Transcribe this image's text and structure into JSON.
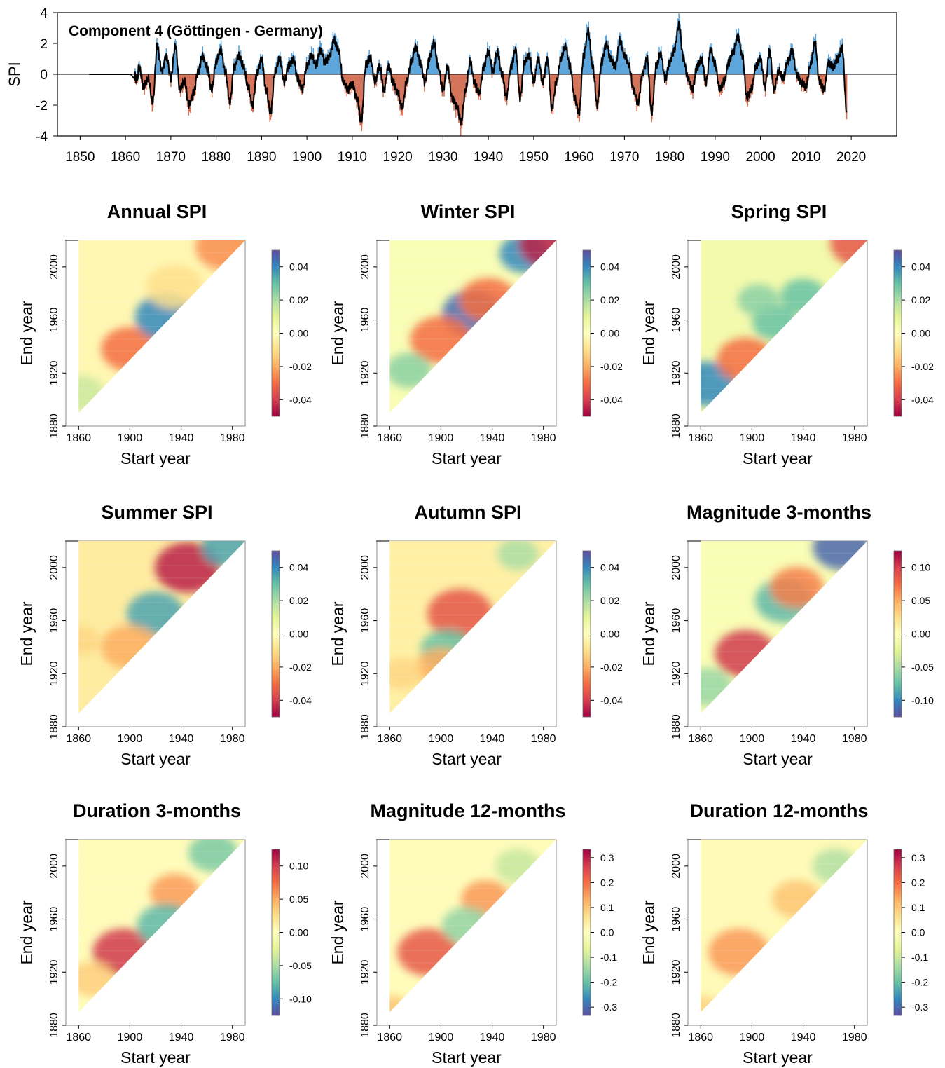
{
  "figure": {
    "timeseries": {
      "title": "Component 4 (Göttingen - Germany)",
      "ylabel": "SPI",
      "yticks": [
        "4",
        "2",
        "0",
        "-2",
        "-4"
      ],
      "xticks": [
        "1850",
        "1860",
        "1870",
        "1880",
        "1890",
        "1900",
        "1910",
        "1920",
        "1930",
        "1940",
        "1950",
        "1960",
        "1970",
        "1980",
        "1990",
        "2000",
        "2010",
        "2020"
      ]
    },
    "panel_axis": {
      "xlabel": "Start year",
      "ylabel": "End year",
      "xticks": [
        "1860",
        "1900",
        "1940",
        "1980"
      ],
      "yticks": [
        "1880",
        "1920",
        "1960",
        "2000"
      ]
    },
    "panels": [
      {
        "title": "Annual SPI",
        "cbar_ticks": [
          "0.04",
          "0.02",
          "0.00",
          "-0.02",
          "-0.04"
        ],
        "cbar_reversed": false
      },
      {
        "title": "Winter SPI",
        "cbar_ticks": [
          "0.04",
          "0.02",
          "0.00",
          "-0.02",
          "-0.04"
        ],
        "cbar_reversed": false
      },
      {
        "title": "Spring SPI",
        "cbar_ticks": [
          "0.04",
          "0.02",
          "0.00",
          "-0.02",
          "-0.04"
        ],
        "cbar_reversed": false
      },
      {
        "title": "Summer SPI",
        "cbar_ticks": [
          "0.04",
          "0.02",
          "0.00",
          "-0.02",
          "-0.04"
        ],
        "cbar_reversed": false
      },
      {
        "title": "Autumn SPI",
        "cbar_ticks": [
          "0.04",
          "0.02",
          "0.00",
          "-0.02",
          "-0.04"
        ],
        "cbar_reversed": false
      },
      {
        "title": "Magnitude 3-months",
        "cbar_ticks": [
          "0.10",
          "0.05",
          "0.00",
          "-0.05",
          "-0.10"
        ],
        "cbar_reversed": true
      },
      {
        "title": "Duration 3-months",
        "cbar_ticks": [
          "0.10",
          "0.05",
          "0.00",
          "-0.05",
          "-0.10"
        ],
        "cbar_reversed": true
      },
      {
        "title": "Magnitude 12-months",
        "cbar_ticks": [
          "0.3",
          "0.2",
          "0.1",
          "0.0",
          "-0.1",
          "-0.2",
          "-0.3"
        ],
        "cbar_reversed": true
      },
      {
        "title": "Duration 12-months",
        "cbar_ticks": [
          "0.3",
          "0.2",
          "0.1",
          "0.0",
          "-0.1",
          "-0.2",
          "-0.3"
        ],
        "cbar_reversed": true
      }
    ],
    "colors": {
      "positive_fill": "#5DA5DA",
      "negative_fill": "#D4745A",
      "spi_line": "#000000"
    }
  },
  "chart_data": [
    {
      "type": "area",
      "title": "Component 4 (Göttingen - Germany)",
      "ylabel": "SPI",
      "xlim": [
        1845,
        2030
      ],
      "ylim": [
        -4,
        4
      ],
      "anchors": [
        [
          1852,
          0
        ],
        [
          1862,
          0
        ],
        [
          1862.5,
          -0.4
        ],
        [
          1863,
          0.5
        ],
        [
          1864,
          -0.8
        ],
        [
          1865,
          -0.3
        ],
        [
          1866,
          -1.8
        ],
        [
          1867,
          1.8
        ],
        [
          1868,
          0.2
        ],
        [
          1869,
          1.2
        ],
        [
          1870,
          -0.2
        ],
        [
          1871,
          1.9
        ],
        [
          1872,
          -1.0
        ],
        [
          1873,
          -0.5
        ],
        [
          1874,
          -2.0
        ],
        [
          1875,
          -1.2
        ],
        [
          1876,
          0.2
        ],
        [
          1877,
          1.2
        ],
        [
          1878,
          0.4
        ],
        [
          1879,
          -1.0
        ],
        [
          1880,
          0.8
        ],
        [
          1881,
          1.6
        ],
        [
          1882,
          0.2
        ],
        [
          1883,
          -1.8
        ],
        [
          1884,
          0.5
        ],
        [
          1885,
          1.2
        ],
        [
          1886,
          0.5
        ],
        [
          1887,
          -0.8
        ],
        [
          1888,
          -2.0
        ],
        [
          1889,
          0.1
        ],
        [
          1890,
          1.0
        ],
        [
          1891,
          -1.0
        ],
        [
          1892,
          -2.5
        ],
        [
          1893,
          0.2
        ],
        [
          1894,
          1.0
        ],
        [
          1895,
          -0.5
        ],
        [
          1896,
          0.6
        ],
        [
          1897,
          1.0
        ],
        [
          1898,
          -0.3
        ],
        [
          1899,
          -1.0
        ],
        [
          1900,
          0.5
        ],
        [
          1901,
          1.2
        ],
        [
          1902,
          0.6
        ],
        [
          1903,
          1.6
        ],
        [
          1904,
          0.8
        ],
        [
          1905,
          1.2
        ],
        [
          1906,
          2.2
        ],
        [
          1907,
          1.5
        ],
        [
          1908,
          -0.5
        ],
        [
          1909,
          -1.0
        ],
        [
          1910,
          -0.6
        ],
        [
          1911,
          -1.5
        ],
        [
          1912,
          -3.0
        ],
        [
          1913,
          0.6
        ],
        [
          1914,
          1.0
        ],
        [
          1915,
          -0.5
        ],
        [
          1916,
          0.5
        ],
        [
          1917,
          -1.0
        ],
        [
          1918,
          0.6
        ],
        [
          1919,
          -0.5
        ],
        [
          1920,
          -1.2
        ],
        [
          1921,
          -2.2
        ],
        [
          1922,
          -0.5
        ],
        [
          1923,
          0.8
        ],
        [
          1924,
          1.8
        ],
        [
          1925,
          0.8
        ],
        [
          1926,
          -0.5
        ],
        [
          1927,
          1.0
        ],
        [
          1928,
          2.0
        ],
        [
          1929,
          0.4
        ],
        [
          1930,
          -1.0
        ],
        [
          1931,
          0.5
        ],
        [
          1932,
          -1.5
        ],
        [
          1933,
          -2.0
        ],
        [
          1934,
          -3.1
        ],
        [
          1935,
          -1.0
        ],
        [
          1936,
          0.8
        ],
        [
          1937,
          -0.6
        ],
        [
          1938,
          -1.2
        ],
        [
          1939,
          0.5
        ],
        [
          1940,
          1.5
        ],
        [
          1941,
          0.2
        ],
        [
          1942,
          1.4
        ],
        [
          1943,
          0.0
        ],
        [
          1944,
          -1.5
        ],
        [
          1945,
          0.5
        ],
        [
          1946,
          1.6
        ],
        [
          1947,
          -1.5
        ],
        [
          1948,
          0.8
        ],
        [
          1949,
          1.2
        ],
        [
          1950,
          -0.5
        ],
        [
          1951,
          1.0
        ],
        [
          1952,
          -0.5
        ],
        [
          1953,
          1.0
        ],
        [
          1954,
          -2.2
        ],
        [
          1955,
          -0.5
        ],
        [
          1956,
          1.0
        ],
        [
          1957,
          1.8
        ],
        [
          1958,
          0.5
        ],
        [
          1959,
          -1.5
        ],
        [
          1960,
          -2.5
        ],
        [
          1961,
          1.2
        ],
        [
          1962,
          2.8
        ],
        [
          1963,
          0.5
        ],
        [
          1964,
          -2.0
        ],
        [
          1965,
          0.8
        ],
        [
          1966,
          2.0
        ],
        [
          1967,
          1.0
        ],
        [
          1968,
          0.5
        ],
        [
          1969,
          2.2
        ],
        [
          1970,
          1.2
        ],
        [
          1971,
          0.6
        ],
        [
          1972,
          -1.0
        ],
        [
          1973,
          -1.8
        ],
        [
          1974,
          0.0
        ],
        [
          1975,
          1.0
        ],
        [
          1976,
          -2.5
        ],
        [
          1977,
          0.5
        ],
        [
          1978,
          1.3
        ],
        [
          1979,
          -0.3
        ],
        [
          1980,
          0.8
        ],
        [
          1981,
          1.6
        ],
        [
          1982,
          3.2
        ],
        [
          1983,
          1.0
        ],
        [
          1984,
          -0.3
        ],
        [
          1985,
          -1.0
        ],
        [
          1986,
          0.5
        ],
        [
          1987,
          1.0
        ],
        [
          1988,
          -0.5
        ],
        [
          1989,
          1.6
        ],
        [
          1990,
          0.6
        ],
        [
          1991,
          -1.0
        ],
        [
          1992,
          -0.5
        ],
        [
          1993,
          0.8
        ],
        [
          1994,
          1.5
        ],
        [
          1995,
          2.5
        ],
        [
          1996,
          1.2
        ],
        [
          1997,
          -1.5
        ],
        [
          1998,
          -1.0
        ],
        [
          1999,
          0.5
        ],
        [
          2000,
          1.0
        ],
        [
          2001,
          -0.8
        ],
        [
          2002,
          1.5
        ],
        [
          2003,
          -1.0
        ],
        [
          2004,
          0.2
        ],
        [
          2005,
          -0.3
        ],
        [
          2006,
          0.8
        ],
        [
          2007,
          1.5
        ],
        [
          2008,
          0.0
        ],
        [
          2009,
          -0.5
        ],
        [
          2010,
          -0.8
        ],
        [
          2011,
          0.6
        ],
        [
          2012,
          2.0
        ],
        [
          2013,
          -0.5
        ],
        [
          2014,
          -1.0
        ],
        [
          2015,
          0.8
        ],
        [
          2016,
          0.5
        ],
        [
          2017,
          1.0
        ],
        [
          2018,
          1.7
        ],
        [
          2019,
          -2.4
        ]
      ]
    },
    {
      "type": "heatmap",
      "panels": [
        "Annual SPI",
        "Winter SPI",
        "Spring SPI",
        "Summer SPI",
        "Autumn SPI",
        "Magnitude 3-months",
        "Duration 3-months",
        "Magnitude 12-months",
        "Duration 12-months"
      ],
      "xlabel": "Start year",
      "ylabel": "End year",
      "xlim": [
        1850,
        1990
      ],
      "ylim": [
        1880,
        2020
      ],
      "extent_lower_left": [
        1860,
        1890
      ],
      "extent_upper_right": [
        1990,
        2020
      ],
      "note_blobs": [
        {
          "panel": 0,
          "blobs": [
            [
              1900,
              1938,
              0.8,
              -0.03
            ],
            [
              1928,
              1962,
              0.9,
              0.04
            ],
            [
              1935,
              1985,
              0.8,
              -0.01
            ],
            [
              1975,
              2015,
              0.9,
              -0.025
            ],
            [
              1862,
              1905,
              0.5,
              0.015
            ]
          ]
        },
        {
          "panel": 1,
          "blobs": [
            [
              1925,
              1965,
              0.9,
              0.045
            ],
            [
              1900,
              1945,
              0.9,
              -0.03
            ],
            [
              1875,
              1922,
              0.5,
              0.025
            ],
            [
              1937,
              1975,
              0.8,
              -0.03
            ],
            [
              1965,
              2010,
              0.6,
              0.04
            ],
            [
              1985,
              2017,
              0.9,
              -0.045
            ]
          ]
        },
        {
          "panel": 2,
          "blobs": [
            [
              1865,
              1912,
              0.8,
              0.04
            ],
            [
              1895,
              1930,
              0.8,
              -0.03
            ],
            [
              1918,
              1958,
              0.5,
              0.03
            ],
            [
              1940,
              1978,
              0.5,
              0.03
            ],
            [
              1905,
              1975,
              0.4,
              0.025
            ],
            [
              1985,
              2018,
              0.9,
              -0.035
            ]
          ]
        },
        {
          "panel": 3,
          "blobs": [
            [
              1945,
              2000,
              1.0,
              -0.045
            ],
            [
              1920,
              1965,
              0.8,
              0.035
            ],
            [
              1900,
              1940,
              0.8,
              -0.02
            ],
            [
              1975,
              2015,
              0.6,
              0.035
            ],
            [
              1862,
              1945,
              0.3,
              -0.012
            ]
          ]
        },
        {
          "panel": 4,
          "blobs": [
            [
              1915,
              1965,
              1.0,
              -0.035
            ],
            [
              1905,
              1938,
              0.7,
              0.03
            ],
            [
              1900,
              1925,
              0.6,
              -0.02
            ],
            [
              1960,
              2010,
              0.4,
              0.02
            ],
            [
              1870,
              1920,
              0.4,
              -0.012
            ]
          ]
        },
        {
          "panel": 5,
          "blobs": [
            [
              1895,
              1935,
              0.9,
              0.09
            ],
            [
              1925,
              1975,
              0.8,
              -0.07
            ],
            [
              1970,
              2015,
              0.8,
              -0.1
            ],
            [
              1935,
              1985,
              0.7,
              0.06
            ],
            [
              1865,
              1910,
              0.6,
              -0.05
            ]
          ]
        },
        {
          "panel": 6,
          "blobs": [
            [
              1895,
              1935,
              0.9,
              0.09
            ],
            [
              1935,
              1980,
              0.6,
              0.05
            ],
            [
              1928,
              1955,
              0.8,
              -0.07
            ],
            [
              1965,
              2010,
              0.6,
              -0.06
            ],
            [
              1870,
              1915,
              0.5,
              0.03
            ]
          ]
        },
        {
          "panel": 7,
          "blobs": [
            [
              1890,
              1935,
              0.9,
              0.22
            ],
            [
              1935,
              1975,
              0.6,
              0.15
            ],
            [
              1920,
              1955,
              0.6,
              -0.15
            ],
            [
              1960,
              2000,
              0.5,
              -0.1
            ],
            [
              1862,
              1890,
              0.4,
              0.1
            ]
          ]
        },
        {
          "panel": 8,
          "blobs": [
            [
              1890,
              1935,
              0.9,
              0.15
            ],
            [
              1935,
              1975,
              0.6,
              0.1
            ],
            [
              1965,
              2000,
              0.5,
              -0.12
            ],
            [
              1862,
              1890,
              0.4,
              0.08
            ]
          ]
        }
      ]
    }
  ]
}
